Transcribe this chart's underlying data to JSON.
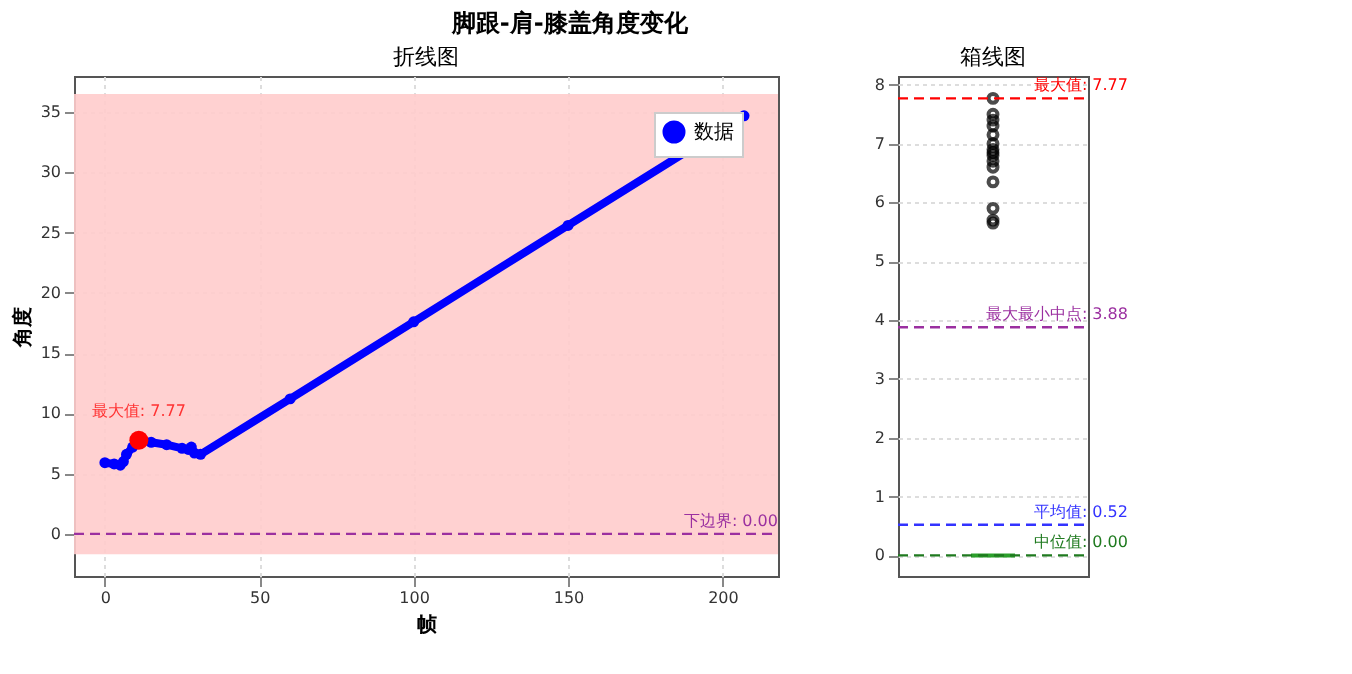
{
  "chart_data": [
    {
      "type": "line",
      "title": "脚跟-肩-膝盖角度变化",
      "subtitle": "折线图",
      "xlabel": "帧",
      "ylabel": "角度",
      "series": [
        {
          "name": "数据",
          "color": "#0000ff",
          "x": [
            0,
            3,
            5,
            6,
            7,
            9,
            11,
            15,
            20,
            25,
            27,
            28,
            29,
            31,
            60,
            100,
            150,
            207
          ],
          "values": [
            5.9,
            5.8,
            5.7,
            6.0,
            6.6,
            7.2,
            7.77,
            7.6,
            7.4,
            7.1,
            7.0,
            7.2,
            6.7,
            6.6,
            11.2,
            17.6,
            25.6,
            34.7
          ],
          "marker": "circle"
        },
        {
          "type": "scatter",
          "color": "#ff0000",
          "x": [
            11
          ],
          "values": [
            7.77
          ],
          "marker": "circle"
        }
      ],
      "annotations": [
        {
          "text": "最大值: 7.77",
          "x": 11,
          "y": 7.77
        }
      ],
      "ref_lines": [
        {
          "axis": "y",
          "value": 0,
          "label": "下边界: 0.00",
          "color": "#9b30a0",
          "line_style": "dashed"
        }
      ],
      "bands": [
        {
          "axis": "y",
          "from": -1.7,
          "to": 36.5,
          "color": "#ffcccc"
        }
      ],
      "xlim": [
        -10,
        218
      ],
      "xticks": [
        0,
        50,
        100,
        150,
        200
      ],
      "ylim": [
        -3.5,
        38
      ],
      "yticks": [
        0,
        5,
        10,
        15,
        20,
        25,
        30,
        35
      ],
      "grid": true,
      "legend": "top right",
      "line_style": "solid"
    },
    {
      "type": "box",
      "title": "箱线图",
      "categories": [
        null
      ],
      "boxes": [
        {
          "low": 0,
          "q1": 0,
          "median": 0,
          "q3": 0,
          "high": 0,
          "outliers": [
            5.65,
            5.7,
            5.9,
            6.35,
            6.6,
            6.7,
            6.8,
            6.85,
            6.9,
            7.0,
            7.15,
            7.3,
            7.4,
            7.5,
            7.77
          ]
        }
      ],
      "color": "#2ca02c",
      "ref_lines": [
        {
          "axis": "y",
          "value": 7.77,
          "label": "最大值: 7.77",
          "color": "#ff0000",
          "line_style": "dashed"
        },
        {
          "axis": "y",
          "value": 3.88,
          "label": "最大最小中点: 3.88",
          "color": "#9b30a0",
          "line_style": "dashed"
        },
        {
          "axis": "y",
          "value": 0.52,
          "label": "平均值: 0.52",
          "color": "#3333ff",
          "line_style": "dashed"
        },
        {
          "axis": "y",
          "value": 0,
          "label": "中位值: 0.00",
          "color": "#1f7a1f",
          "line_style": "dashed"
        }
      ],
      "ylim": [
        -0.35,
        8.15
      ],
      "yticks": [
        0,
        1,
        2,
        3,
        4,
        5,
        6,
        7,
        8
      ],
      "grid": "y",
      "tick_labels": "y"
    }
  ]
}
